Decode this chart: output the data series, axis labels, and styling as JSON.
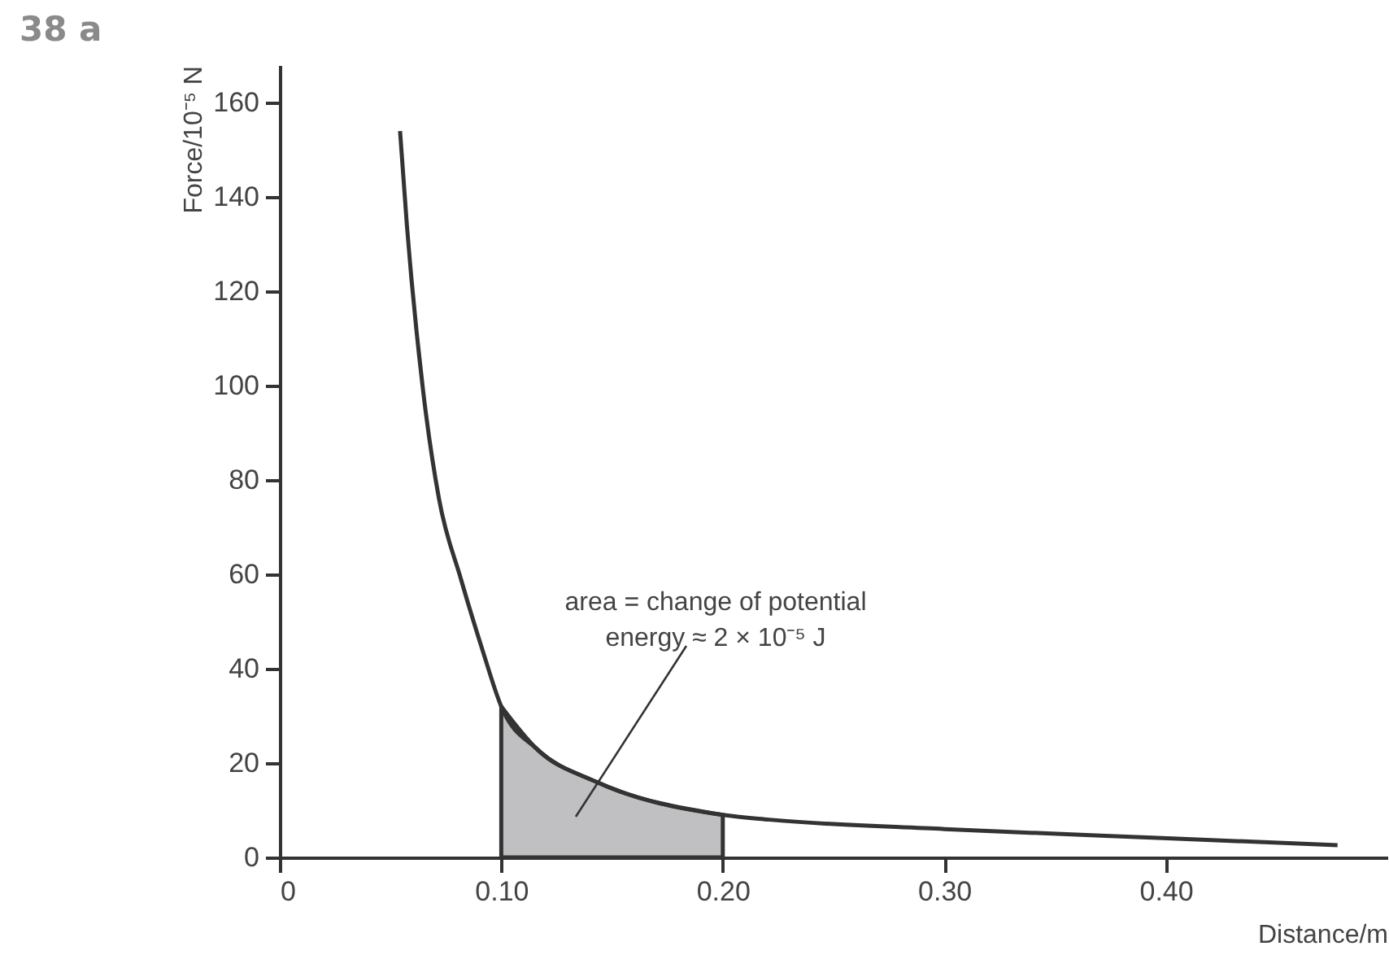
{
  "chart_data": {
    "type": "line",
    "title": "38 a",
    "xlabel": "Distance/m",
    "ylabel": "Force/10⁻⁵ N",
    "xlim": [
      0,
      0.5
    ],
    "ylim": [
      0,
      168
    ],
    "xticks": [
      0,
      {
        "value": 0.1,
        "label": "0.10"
      },
      {
        "value": 0.2,
        "label": "0.20"
      },
      {
        "value": 0.3,
        "label": "0.30"
      },
      {
        "value": 0.4,
        "label": "0.40"
      }
    ],
    "yticks": [
      0,
      20,
      40,
      60,
      80,
      100,
      120,
      140,
      160
    ],
    "series": [
      {
        "type": "area",
        "color": "#c0c0c2",
        "x": [
          0.1,
          0.116,
          0.143,
          0.2
        ],
        "values": [
          32,
          23,
          16,
          9
        ]
      },
      {
        "color": "#333333",
        "x": [
          0.0543,
          0.0574,
          0.0647,
          0.0719,
          0.0818,
          0.0915,
          0.1,
          0.116,
          0.143,
          0.2,
          0.221,
          0.3,
          0.403,
          0.4775
        ],
        "values": [
          154,
          134,
          99,
          76,
          59,
          44,
          32,
          23,
          16,
          9,
          8,
          6,
          4,
          2.6
        ]
      }
    ],
    "annotations": [
      "area = change of potential\nenergy ≈ 2 × 10⁻⁵ J"
    ]
  }
}
